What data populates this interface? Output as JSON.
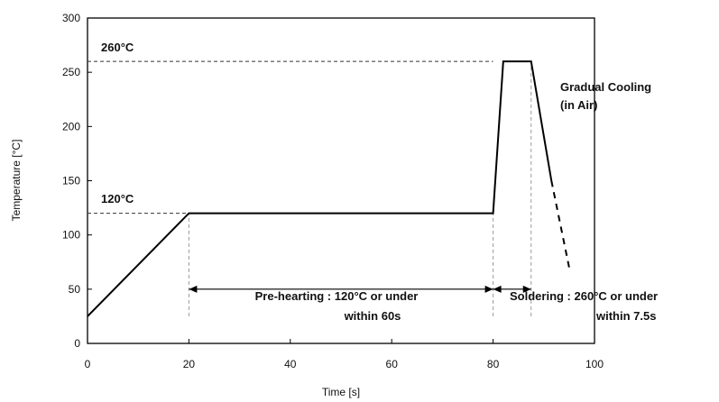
{
  "chart_data": {
    "type": "line",
    "xlabel": "Time [s]",
    "ylabel": "Temperature [°C]",
    "xlim": [
      0,
      100
    ],
    "ylim": [
      0,
      300
    ],
    "xticks": [
      "0",
      "20",
      "40",
      "60",
      "80",
      "100"
    ],
    "yticks": [
      "0",
      "50",
      "100",
      "150",
      "200",
      "250",
      "300"
    ],
    "grid": false,
    "series": [
      {
        "x": [
          0,
          20,
          80,
          82,
          87.5,
          91.5
        ],
        "y": [
          25,
          120,
          120,
          260,
          260,
          150
        ],
        "style": "solid"
      },
      {
        "x": [
          91.5,
          95
        ],
        "y": [
          150,
          70
        ],
        "style": "dashed"
      }
    ],
    "reference_lines": [
      {
        "label": "260°C",
        "y": 260,
        "x_from": 0,
        "x_to": 80
      },
      {
        "label": "120°C",
        "y": 120,
        "x_from": 0,
        "x_to": 20
      }
    ],
    "marker_lines": [
      {
        "x": 20,
        "y_from": 25,
        "y_to": 120
      },
      {
        "x": 80,
        "y_from": 25,
        "y_to": 120
      },
      {
        "x": 87.5,
        "y_from": 25,
        "y_to": 260
      }
    ],
    "spans": [
      {
        "x_from": 20,
        "x_to": 80,
        "y": 50
      },
      {
        "x_from": 80,
        "x_to": 87.5,
        "y": 50
      }
    ],
    "annotations": {
      "preheat_line1": "Pre-hearting : 120°C or under",
      "preheat_line2": "within 60s",
      "solder_line1": "Soldering : 260°C or under",
      "solder_line2": "within 7.5s",
      "cooling_line1": "Gradual Cooling",
      "cooling_line2": "(in Air)"
    },
    "colors": {
      "line": "#000000",
      "guide": "#999999",
      "ref": "#333333"
    }
  }
}
